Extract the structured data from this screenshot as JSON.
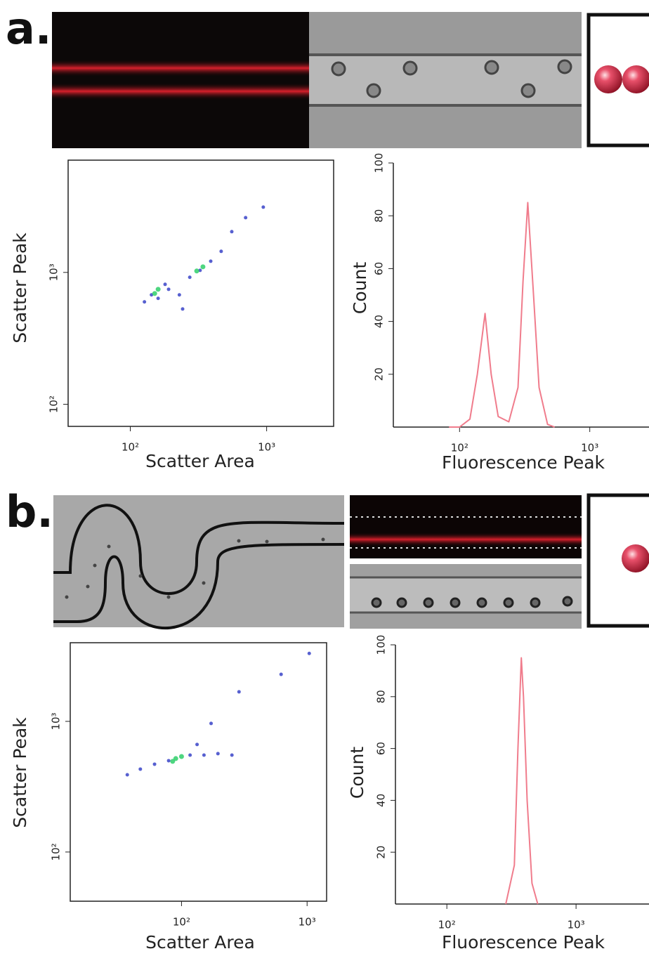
{
  "panel_labels": [
    "a.",
    "b."
  ],
  "chart_data": [
    {
      "type": "scatter",
      "xlabel": "Scatter Area",
      "ylabel": "Scatter Peak",
      "xscale": "log",
      "yscale": "log",
      "xlim": [
        35,
        3100
      ],
      "ylim": [
        68,
        7100
      ],
      "xticks": [
        {
          "value": 100,
          "label": "10²"
        },
        {
          "value": 1000,
          "label": "10³"
        }
      ],
      "yticks": [
        {
          "value": 100,
          "label": "10²"
        },
        {
          "value": 1000,
          "label": "10³"
        }
      ],
      "series": [
        {
          "color": "#3a44c8",
          "x": [
            127,
            143,
            160,
            191,
            229,
            273,
            325,
            389,
            464,
            555,
            701,
            945,
            242,
            180
          ],
          "values": [
            598,
            676,
            636,
            745,
            676,
            918,
            1037,
            1216,
            1445,
            2037,
            2600,
            3125,
            528,
            812
          ]
        },
        {
          "color": "#2fcf6a",
          "x": [
            160,
            151,
            341,
            307
          ],
          "values": [
            745,
            692,
            1103,
            1025
          ]
        }
      ]
    },
    {
      "type": "line",
      "xlabel": "Fluorescence Peak",
      "ylabel": "Count",
      "xscale": "log",
      "xlim": [
        31,
        2850
      ],
      "ylim": [
        0,
        100
      ],
      "xticks": [
        {
          "value": 100,
          "label": "10²"
        },
        {
          "value": 1000,
          "label": "10³"
        }
      ],
      "yticks": [
        20,
        40,
        60,
        80,
        100
      ],
      "color": "#f07c8c",
      "x": [
        83,
        100,
        120,
        137,
        157,
        175,
        198,
        239,
        281,
        307,
        334,
        370,
        408,
        474,
        537
      ],
      "values": [
        0,
        0,
        3,
        20,
        43,
        20,
        4,
        2,
        15,
        55,
        85,
        50,
        15,
        1,
        0
      ]
    },
    {
      "type": "scatter",
      "xlabel": "Scatter Area",
      "ylabel": "Scatter Peak",
      "xscale": "log",
      "yscale": "log",
      "xlim": [
        13,
        1430
      ],
      "ylim": [
        42,
        4000
      ],
      "xticks": [
        {
          "value": 100,
          "label": "10²"
        },
        {
          "value": 1000,
          "label": "10³"
        }
      ],
      "yticks": [
        {
          "value": 100,
          "label": "10²"
        },
        {
          "value": 1000,
          "label": "10³"
        }
      ],
      "series": [
        {
          "color": "#3a44c8",
          "x": [
            37,
            47,
            61,
            79,
            117,
            151,
            195,
            252,
            133,
            172,
            287,
            621,
            1040
          ],
          "values": [
            390,
            431,
            470,
            500,
            552,
            552,
            566,
            552,
            665,
            964,
            1683,
            2290,
            3310
          ]
        },
        {
          "color": "#2fcf6a",
          "x": [
            90,
            100,
            85
          ],
          "values": [
            519,
            538,
            494
          ]
        }
      ]
    },
    {
      "type": "line",
      "xlabel": "Fluorescence Peak",
      "ylabel": "Count",
      "xscale": "log",
      "xlim": [
        40,
        3670
      ],
      "ylim": [
        0,
        100
      ],
      "xticks": [
        {
          "value": 100,
          "label": "10²"
        },
        {
          "value": 1000,
          "label": "10³"
        }
      ],
      "yticks": [
        20,
        40,
        60,
        80,
        100
      ],
      "color": "#f07c8c",
      "x": [
        286,
        333,
        355,
        377,
        392,
        418,
        456,
        505
      ],
      "values": [
        0,
        15,
        60,
        95,
        80,
        40,
        8,
        0
      ]
    }
  ]
}
